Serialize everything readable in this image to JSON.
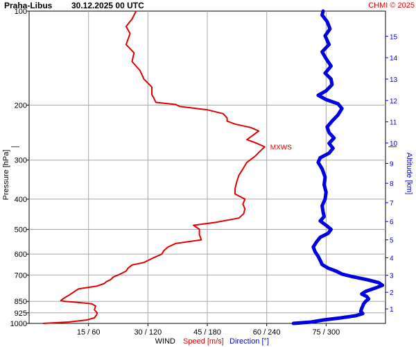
{
  "header": {
    "station": "Praha-Libus",
    "datetime": "30.12.2025 00 UTC",
    "credit": "CHMI © 2025"
  },
  "chart_data": {
    "type": "line",
    "pressure_axis": {
      "label": "Pressure [hPa]",
      "scale": "log",
      "range": [
        1000,
        100
      ],
      "ticks": [
        1000,
        925,
        850,
        700,
        600,
        500,
        400,
        300,
        200,
        100
      ],
      "tick_labels": [
        "1000",
        "925",
        "850",
        "700",
        "600",
        "500",
        "400",
        "300",
        "200",
        "100"
      ]
    },
    "altitude_axis": {
      "label": "Altitude [km]",
      "ticks": [
        "1",
        "2",
        "3",
        "4",
        "5",
        "6",
        "7",
        "8",
        "9",
        "10",
        "11",
        "12",
        "13",
        "14",
        "15"
      ],
      "tick_pressures": [
        898.7,
        795.0,
        701.1,
        616.4,
        540.2,
        471.8,
        410.6,
        356.0,
        307.4,
        264.4,
        226.3,
        193.3,
        165.1,
        141.0,
        120.4
      ]
    },
    "x_axis": {
      "label_wind": "WIND",
      "label_speed": "Speed [m/s]",
      "label_direction": "Direction [°]",
      "speed_range": [
        0,
        90
      ],
      "direction_range": [
        0,
        360
      ],
      "ticks": [
        {
          "speed": 15,
          "direction": 60,
          "label": "15 / 60"
        },
        {
          "speed": 30,
          "direction": 120,
          "label": "30 / 120"
        },
        {
          "speed": 45,
          "direction": 180,
          "label": "45 / 180"
        },
        {
          "speed": 60,
          "direction": 240,
          "label": "60 / 240"
        },
        {
          "speed": 75,
          "direction": 300,
          "label": "75 / 300"
        }
      ]
    },
    "grid": true,
    "max_wind": {
      "label": "MXWS",
      "pressure": 272,
      "speed": 59.5
    },
    "series": [
      {
        "name": "Speed [m/s]",
        "color": "#e00000",
        "unit": "m/s",
        "points": [
          [
            1000,
            3.5
          ],
          [
            990,
            10
          ],
          [
            975,
            14.5
          ],
          [
            960,
            16.5
          ],
          [
            940,
            17
          ],
          [
            925,
            17.2
          ],
          [
            905,
            16.5
          ],
          [
            880,
            16.8
          ],
          [
            865,
            15.8
          ],
          [
            855,
            11.5
          ],
          [
            850,
            9
          ],
          [
            845,
            8
          ],
          [
            830,
            8.8
          ],
          [
            810,
            10.2
          ],
          [
            790,
            11.5
          ],
          [
            775,
            12.5
          ],
          [
            760,
            17
          ],
          [
            745,
            19
          ],
          [
            735,
            19.5
          ],
          [
            725,
            20.5
          ],
          [
            710,
            21.3
          ],
          [
            695,
            23
          ],
          [
            680,
            24.5
          ],
          [
            665,
            25
          ],
          [
            650,
            26
          ],
          [
            638,
            29
          ],
          [
            620,
            31
          ],
          [
            600,
            33.5
          ],
          [
            585,
            34
          ],
          [
            570,
            35
          ],
          [
            555,
            37
          ],
          [
            540,
            43.5
          ],
          [
            520,
            43
          ],
          [
            500,
            43
          ],
          [
            485,
            41.5
          ],
          [
            475,
            47
          ],
          [
            460,
            53
          ],
          [
            445,
            54.2
          ],
          [
            430,
            54.5
          ],
          [
            415,
            54
          ],
          [
            400,
            54.5
          ],
          [
            385,
            52
          ],
          [
            370,
            52
          ],
          [
            350,
            52.5
          ],
          [
            335,
            53
          ],
          [
            320,
            54
          ],
          [
            305,
            55
          ],
          [
            292,
            57
          ],
          [
            282,
            58.2
          ],
          [
            272,
            59.5
          ],
          [
            265,
            57.5
          ],
          [
            258,
            55
          ],
          [
            250,
            56.5
          ],
          [
            242,
            58
          ],
          [
            236,
            56
          ],
          [
            230,
            52
          ],
          [
            225,
            50
          ],
          [
            220,
            50
          ],
          [
            213,
            49
          ],
          [
            207,
            45
          ],
          [
            202,
            38
          ],
          [
            199,
            37
          ],
          [
            196,
            32
          ],
          [
            190,
            31.5
          ],
          [
            185,
            31
          ],
          [
            175,
            31
          ],
          [
            165,
            29
          ],
          [
            155,
            28
          ],
          [
            145,
            26
          ],
          [
            136,
            26.5
          ],
          [
            128,
            24.5
          ],
          [
            118,
            25.5
          ],
          [
            112,
            24.5
          ],
          [
            106,
            26
          ],
          [
            100,
            27
          ]
        ]
      },
      {
        "name": "Direction [°]",
        "color": "#0000e0",
        "unit": "°",
        "points": [
          [
            1000,
            267
          ],
          [
            990,
            285
          ],
          [
            975,
            297
          ],
          [
            960,
            315
          ],
          [
            945,
            330
          ],
          [
            930,
            337
          ],
          [
            915,
            335
          ],
          [
            895,
            336
          ],
          [
            880,
            337
          ],
          [
            865,
            338
          ],
          [
            850,
            340
          ],
          [
            835,
            343
          ],
          [
            820,
            341
          ],
          [
            805,
            336
          ],
          [
            790,
            340
          ],
          [
            770,
            350
          ],
          [
            755,
            357
          ],
          [
            740,
            353
          ],
          [
            725,
            342
          ],
          [
            710,
            328
          ],
          [
            695,
            316
          ],
          [
            680,
            310
          ],
          [
            665,
            302
          ],
          [
            648,
            296
          ],
          [
            628,
            294
          ],
          [
            610,
            292
          ],
          [
            590,
            289
          ],
          [
            570,
            287
          ],
          [
            550,
            290
          ],
          [
            530,
            294
          ],
          [
            515,
            302
          ],
          [
            500,
            305
          ],
          [
            485,
            300
          ],
          [
            470,
            294
          ],
          [
            455,
            298
          ],
          [
            440,
            297
          ],
          [
            420,
            296
          ],
          [
            400,
            299
          ],
          [
            380,
            300
          ],
          [
            360,
            298
          ],
          [
            340,
            299
          ],
          [
            320,
            296
          ],
          [
            305,
            292
          ],
          [
            295,
            294
          ],
          [
            285,
            303
          ],
          [
            275,
            307
          ],
          [
            265,
            303
          ],
          [
            255,
            308
          ],
          [
            245,
            303
          ],
          [
            235,
            301
          ],
          [
            225,
            306
          ],
          [
            215,
            312
          ],
          [
            205,
            316
          ],
          [
            198,
            312
          ],
          [
            192,
            300
          ],
          [
            186,
            292
          ],
          [
            180,
            300
          ],
          [
            172,
            306
          ],
          [
            165,
            305
          ],
          [
            158,
            299
          ],
          [
            150,
            305
          ],
          [
            142,
            300
          ],
          [
            135,
            296
          ],
          [
            128,
            303
          ],
          [
            120,
            299
          ],
          [
            114,
            304
          ],
          [
            108,
            301
          ],
          [
            103,
            296
          ],
          [
            100,
            297
          ]
        ]
      }
    ]
  }
}
